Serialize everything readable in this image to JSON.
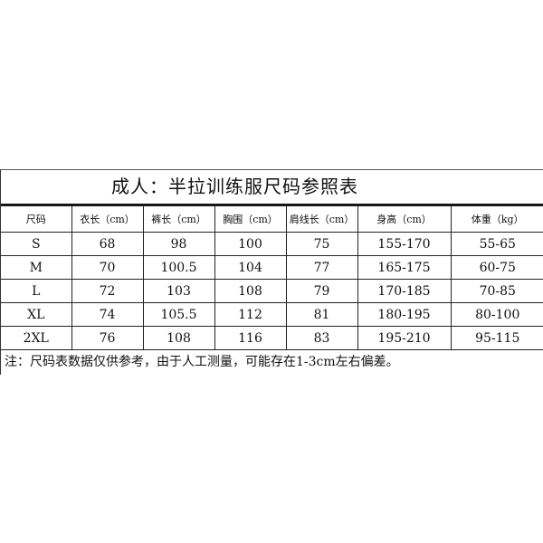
{
  "title": "成人：半拉训练服尺码参照表",
  "headers": [
    "尺码",
    "衣长（cm）",
    "裤长（cm）",
    "胸围（cm）",
    "肩线长（cm）",
    "身高（cm）",
    "体重（kg）"
  ],
  "rows": [
    [
      "S",
      "68",
      "98",
      "100",
      "75",
      "155-170",
      "55-65"
    ],
    [
      "M",
      "70",
      "100.5",
      "104",
      "77",
      "165-175",
      "60-75"
    ],
    [
      "L",
      "72",
      "103",
      "108",
      "79",
      "170-185",
      "70-85"
    ],
    [
      "XL",
      "74",
      "105.5",
      "112",
      "81",
      "180-195",
      "80-100"
    ],
    [
      "2XL",
      "76",
      "108",
      "116",
      "83",
      "195-210",
      "95-115"
    ]
  ],
  "note": "注：尺码表数据仅供参考，由于人工测量，可能存在1-3cm左右偏差。"
}
